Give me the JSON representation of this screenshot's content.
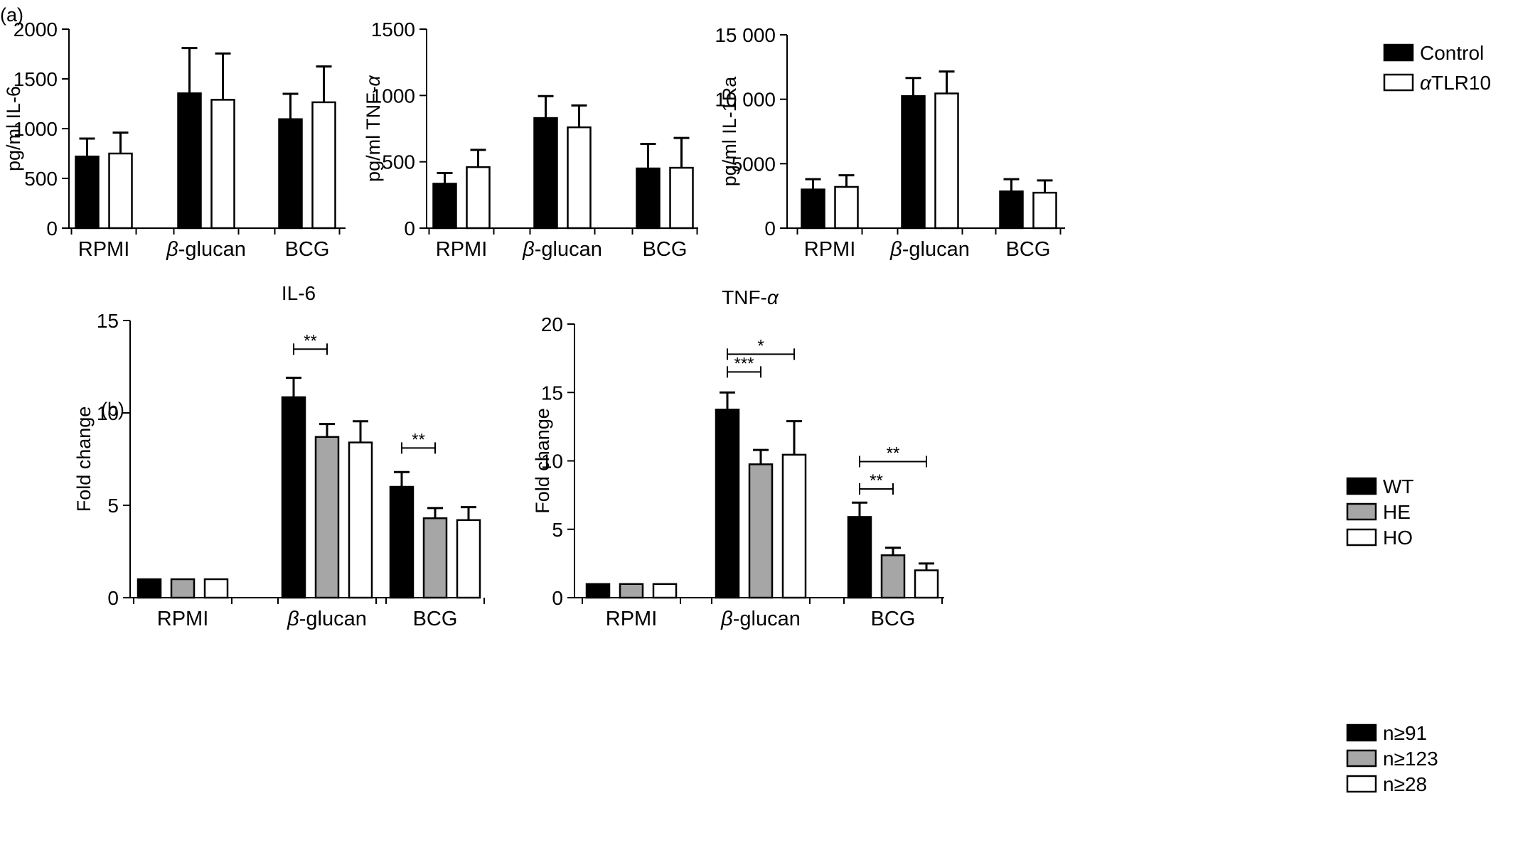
{
  "figure": {
    "panel_a_label": "(a)",
    "panel_b_label": "(b)"
  },
  "legends": [
    {
      "entries": [
        {
          "label": "Control",
          "color": "#000000"
        },
        {
          "label": "αTLR10",
          "color": "#ffffff"
        }
      ]
    },
    {
      "entries": [
        {
          "label": "WT",
          "color": "#000000"
        },
        {
          "label": "HE",
          "color": "#a6a6a6"
        },
        {
          "label": "HO",
          "color": "#ffffff"
        }
      ]
    },
    {
      "entries": [
        {
          "label": "n≥91",
          "color": "#000000"
        },
        {
          "label": "n≥123",
          "color": "#a6a6a6"
        },
        {
          "label": "n≥28",
          "color": "#ffffff"
        }
      ]
    }
  ],
  "chart_data": [
    {
      "type": "bar",
      "title": "",
      "xlabel": "",
      "ylabel": "pg/ml IL-6",
      "ylim": [
        0,
        2000
      ],
      "yticks": [
        "0",
        "500",
        "1000",
        "1500",
        "2000"
      ],
      "categories": [
        "RPMI",
        "β-glucan",
        "BCG"
      ],
      "series": [
        {
          "name": "Control",
          "color": "#000000",
          "values": [
            720,
            1355,
            1095
          ],
          "errors": [
            180,
            455,
            255
          ]
        },
        {
          "name": "αTLR10",
          "color": "#ffffff",
          "values": [
            750,
            1290,
            1265
          ],
          "errors": [
            210,
            465,
            360
          ]
        }
      ],
      "significance": []
    },
    {
      "type": "bar",
      "title": "",
      "xlabel": "",
      "ylabel": "pg/ml TNF-α",
      "ylim": [
        0,
        1500
      ],
      "yticks": [
        "0",
        "500",
        "1000",
        "1500"
      ],
      "categories": [
        "RPMI",
        "β-glucan",
        "BCG"
      ],
      "series": [
        {
          "name": "Control",
          "color": "#000000",
          "values": [
            335,
            830,
            450
          ],
          "errors": [
            80,
            165,
            185
          ]
        },
        {
          "name": "αTLR10",
          "color": "#ffffff",
          "values": [
            460,
            760,
            455
          ],
          "errors": [
            130,
            165,
            225
          ]
        }
      ],
      "significance": []
    },
    {
      "type": "bar",
      "title": "",
      "xlabel": "",
      "ylabel": "pg/ml IL-1Ra",
      "ylim": [
        0,
        15000
      ],
      "yticks": [
        "0",
        "5000",
        "10 000",
        "15 000"
      ],
      "categories": [
        "RPMI",
        "β-glucan",
        "BCG"
      ],
      "series": [
        {
          "name": "Control",
          "color": "#000000",
          "values": [
            3000,
            10250,
            2850
          ],
          "errors": [
            800,
            1400,
            950
          ]
        },
        {
          "name": "αTLR10",
          "color": "#ffffff",
          "values": [
            3200,
            10450,
            2750
          ],
          "errors": [
            900,
            1700,
            950
          ]
        }
      ],
      "significance": []
    },
    {
      "type": "bar",
      "title": "IL-6",
      "xlabel": "",
      "ylabel": "Fold change",
      "ylim": [
        0,
        15
      ],
      "yticks": [
        "0",
        "5",
        "10",
        "15"
      ],
      "categories": [
        "RPMI",
        "β-glucan",
        "BCG"
      ],
      "series": [
        {
          "name": "WT",
          "color": "#000000",
          "values": [
            1.0,
            10.85,
            6.0
          ],
          "errors": [
            0,
            1.05,
            0.8
          ]
        },
        {
          "name": "HE",
          "color": "#a6a6a6",
          "values": [
            1.0,
            8.7,
            4.3
          ],
          "errors": [
            0,
            0.7,
            0.55
          ]
        },
        {
          "name": "HO",
          "color": "#ffffff",
          "values": [
            1.0,
            8.4,
            4.2
          ],
          "errors": [
            0,
            1.15,
            0.7
          ]
        }
      ],
      "significance": [
        {
          "category": 1,
          "from": 0,
          "to": 1,
          "y": 13.45,
          "label": "**"
        },
        {
          "category": 2,
          "from": 0,
          "to": 1,
          "y": 8.1,
          "label": "**"
        }
      ]
    },
    {
      "type": "bar",
      "title": "TNF-α",
      "xlabel": "",
      "ylabel": "Fold change",
      "ylim": [
        0,
        20
      ],
      "yticks": [
        "0",
        "5",
        "10",
        "15",
        "20"
      ],
      "categories": [
        "RPMI",
        "β-glucan",
        "BCG"
      ],
      "series": [
        {
          "name": "WT",
          "color": "#000000",
          "values": [
            1.0,
            13.75,
            5.9
          ],
          "errors": [
            0,
            1.25,
            1.05
          ]
        },
        {
          "name": "HE",
          "color": "#a6a6a6",
          "values": [
            1.0,
            9.75,
            3.1
          ],
          "errors": [
            0,
            1.05,
            0.55
          ]
        },
        {
          "name": "HO",
          "color": "#ffffff",
          "values": [
            1.0,
            10.45,
            2.0
          ],
          "errors": [
            0,
            2.45,
            0.5
          ]
        }
      ],
      "significance": [
        {
          "category": 1,
          "from": 0,
          "to": 1,
          "y": 16.5,
          "label": "***"
        },
        {
          "category": 1,
          "from": 0,
          "to": 2,
          "y": 17.8,
          "label": "*"
        },
        {
          "category": 2,
          "from": 0,
          "to": 1,
          "y": 7.95,
          "label": "**"
        },
        {
          "category": 2,
          "from": 0,
          "to": 2,
          "y": 9.95,
          "label": "**"
        }
      ]
    }
  ]
}
